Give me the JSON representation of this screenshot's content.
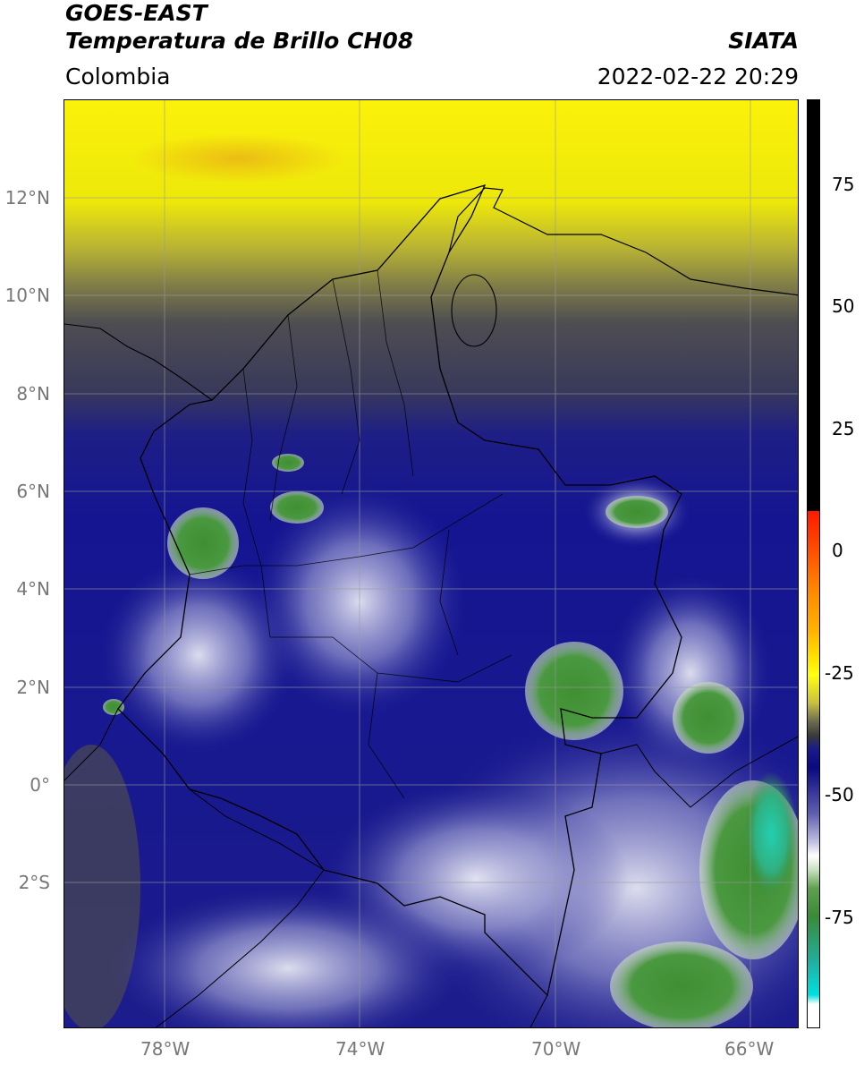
{
  "header": {
    "satellite": "GOES-EAST",
    "product": "Temperatura de Brillo CH08",
    "region": "Colombia",
    "agency": "SIATA",
    "datetime": "2022-02-22 20:29"
  },
  "map": {
    "lat_labels": [
      "12°N",
      "10°N",
      "8°N",
      "6°N",
      "4°N",
      "2°N",
      "0°",
      "2°S"
    ],
    "lon_labels": [
      "78°W",
      "74°W",
      "70°W",
      "66°W"
    ],
    "extent": {
      "lon_min": -80.0,
      "lon_max": -65.0,
      "lat_min": -5.0,
      "lat_max": 14.0
    }
  },
  "colorbar": {
    "ticks": [
      "75",
      "50",
      "25",
      "0",
      "-25",
      "-50",
      "-75"
    ],
    "range": [
      -95,
      90
    ],
    "colors": {
      "black": "#000000",
      "red": "#ff2a00",
      "orange": "#ffa000",
      "yellow": "#ffff00",
      "olive": "#3a3a3a",
      "navy": "#1a1a8a",
      "white": "#ffffff",
      "green": "#3a8a30",
      "cyan": "#00d8d8"
    }
  }
}
